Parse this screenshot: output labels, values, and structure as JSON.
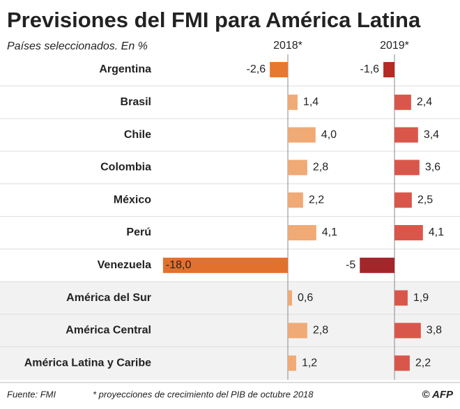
{
  "chart_data": {
    "type": "bar",
    "orientation": "horizontal",
    "title": "Previsiones del FMI para América Latina",
    "subtitle": "Países seleccionados. En %",
    "categories": [
      "Argentina",
      "Brasil",
      "Chile",
      "Colombia",
      "México",
      "Perú",
      "Venezuela",
      "América del Sur",
      "América Central",
      "América Latina y Caribe"
    ],
    "series": [
      {
        "name": "2018*",
        "values": [
          -2.6,
          1.4,
          4.0,
          2.8,
          2.2,
          4.1,
          -18.0,
          0.6,
          2.8,
          1.2
        ],
        "value_labels": [
          "-2,6",
          "1,4",
          "4,0",
          "2,8",
          "2,2",
          "4,1",
          "-18,0",
          "0,6",
          "2,8",
          "1,2"
        ],
        "colors": [
          "#e8782f",
          "#f0aa75",
          "#f0aa75",
          "#f0aa75",
          "#f0aa75",
          "#f0aa75",
          "#e2712d",
          "#f0aa75",
          "#f0aa75",
          "#f0aa75"
        ]
      },
      {
        "name": "2019*",
        "values": [
          -1.6,
          2.4,
          3.4,
          3.6,
          2.5,
          4.1,
          -5,
          1.9,
          3.8,
          2.2
        ],
        "value_labels": [
          "-1,6",
          "2,4",
          "3,4",
          "3,6",
          "2,5",
          "4,1",
          "-5",
          "1,9",
          "3,8",
          "2,2"
        ],
        "colors": [
          "#b52a22",
          "#d9574a",
          "#d9574a",
          "#d9574a",
          "#d9574a",
          "#d9574a",
          "#a3262a",
          "#d9574a",
          "#d9574a",
          "#d9574a"
        ]
      }
    ],
    "source": "Fuente: FMI",
    "note": "* proyecciones de crecimiento del PIB de octubre 2018",
    "credit": "© AFP"
  }
}
